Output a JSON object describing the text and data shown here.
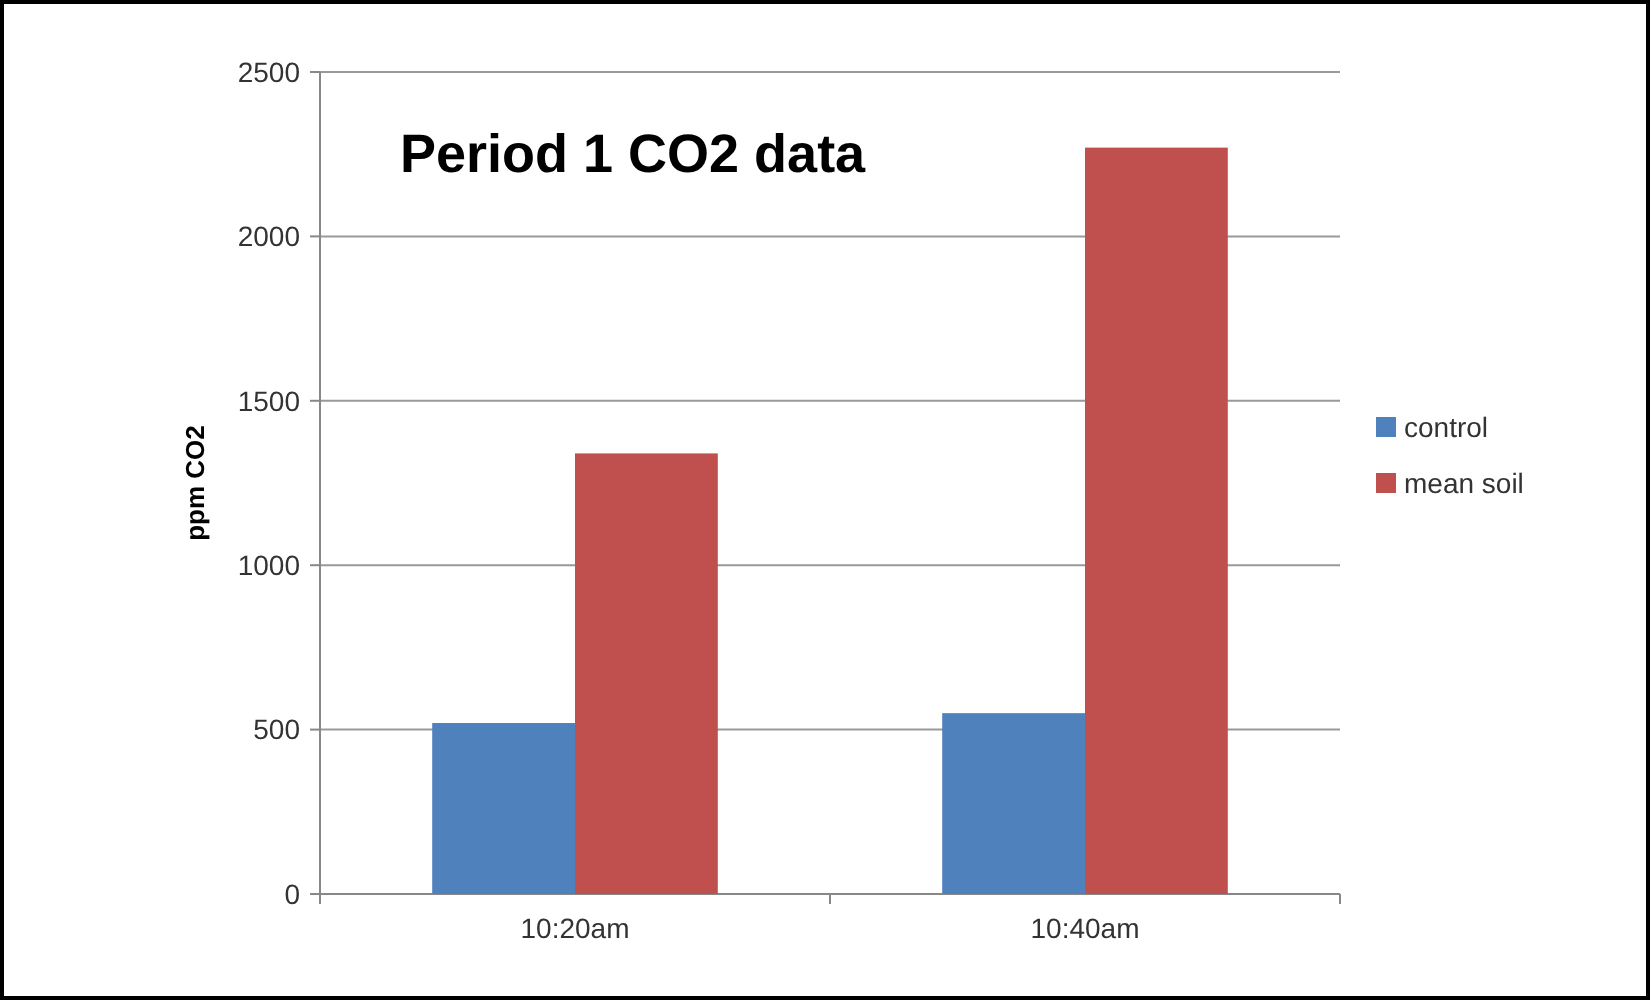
{
  "chart_data": {
    "type": "bar",
    "title": "Period 1 CO2 data",
    "ylabel": "ppm CO2",
    "categories": [
      "10:20am",
      "10:40am"
    ],
    "series": [
      {
        "name": "control",
        "color": "#4f81bd",
        "values": [
          520,
          550
        ]
      },
      {
        "name": "mean soil",
        "color": "#c0504d",
        "values": [
          1340,
          2270
        ]
      }
    ],
    "ylim": [
      0,
      2500
    ],
    "yticks": [
      0,
      500,
      1000,
      1500,
      2000,
      2500
    ],
    "grid": "y",
    "legend": "right"
  }
}
